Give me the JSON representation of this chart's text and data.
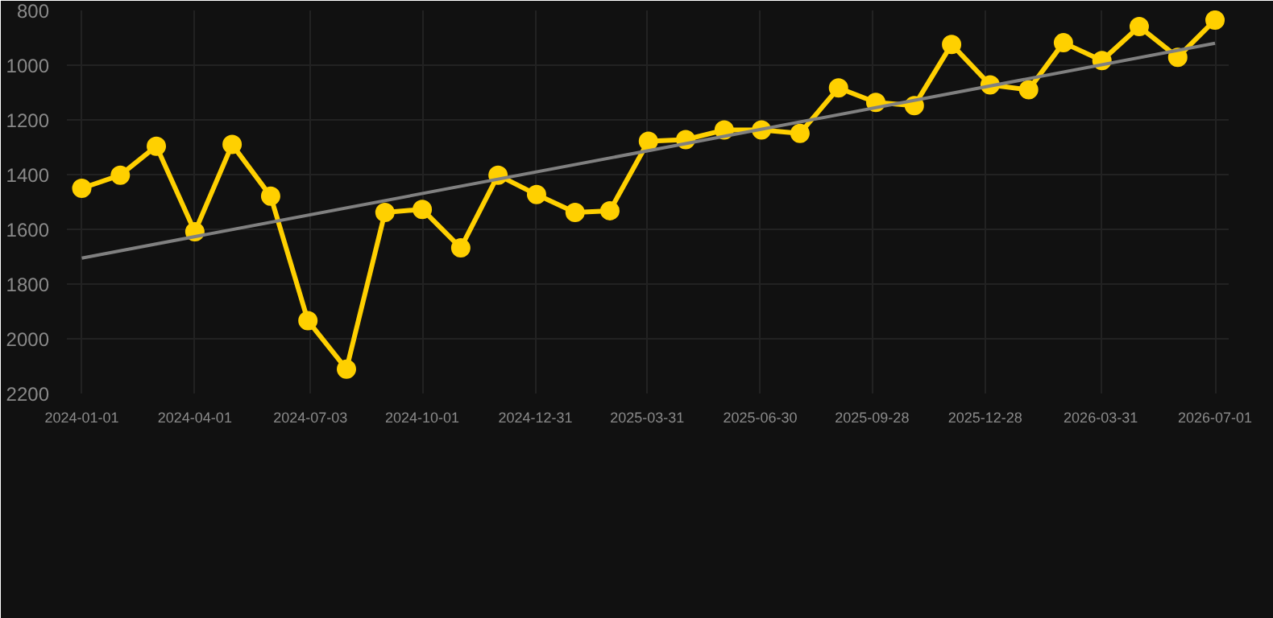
{
  "chart_data": {
    "type": "line",
    "x": [
      "2024-01-01",
      "2024-02-01",
      "2024-03-01",
      "2024-04-01",
      "2024-05-01",
      "2024-06-01",
      "2024-07-01",
      "2024-08-01",
      "2024-09-01",
      "2024-10-01",
      "2024-11-01",
      "2024-12-01",
      "2025-01-01",
      "2025-02-01",
      "2025-03-01",
      "2025-04-01",
      "2025-05-01",
      "2025-06-01",
      "2025-07-01",
      "2025-08-01",
      "2025-09-01",
      "2025-10-01",
      "2025-11-01",
      "2025-12-01",
      "2026-01-01",
      "2026-02-01",
      "2026-03-01",
      "2026-04-01",
      "2026-05-01",
      "2026-06-01",
      "2026-07-01"
    ],
    "series": [
      {
        "color": "#ffd000",
        "marker": "circle",
        "values": [
          1450,
          1402,
          1296,
          1609,
          1290,
          1479,
          1934,
          2111,
          1538,
          1527,
          1668,
          1402,
          1473,
          1538,
          1532,
          1278,
          1272,
          1237,
          1237,
          1249,
          1083,
          1136,
          1148,
          924,
          1072,
          1090,
          918,
          983,
          859,
          971,
          835
        ]
      },
      {
        "type": "line",
        "color": "#808080",
        "marker": "none",
        "x": [
          "2024-01-01",
          "2026-07-01"
        ],
        "values": [
          1705,
          920
        ]
      }
    ],
    "ylim": [
      2200,
      800
    ],
    "yticks": [
      800,
      1000,
      1200,
      1400,
      1600,
      1800,
      2000,
      2200
    ],
    "xlim": [
      "2023-12-20",
      "2026-07-12"
    ],
    "xticks": [
      {
        "value": "2024-01-01",
        "label": "2024-01-01"
      },
      {
        "value": "2024-04-01",
        "label": "2024-04-01"
      },
      {
        "value": "2024-07-03",
        "label": "2024-07-03"
      },
      {
        "value": "2024-10-01",
        "label": "2024-10-01"
      },
      {
        "value": "2024-12-31",
        "label": "2024-12-31"
      },
      {
        "value": "2025-03-31",
        "label": "2025-03-31"
      },
      {
        "value": "2025-06-30",
        "label": "2025-06-30"
      },
      {
        "value": "2025-09-28",
        "label": "2025-09-28"
      },
      {
        "value": "2025-12-28",
        "label": "2025-12-28"
      },
      {
        "value": "2026-03-31",
        "label": "2026-03-31"
      },
      {
        "value": "2026-07-01",
        "label": "2026-07-01"
      }
    ],
    "grid": true,
    "line_style": "solid"
  }
}
